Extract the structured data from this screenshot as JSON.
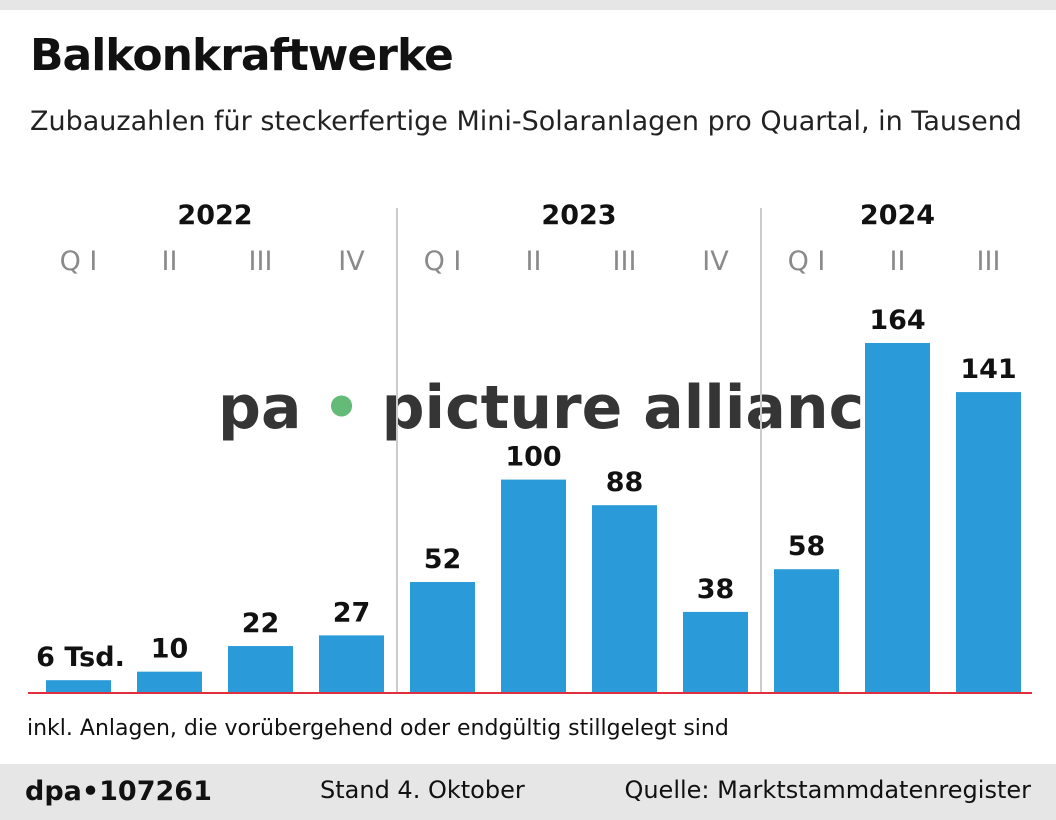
{
  "title": "Balkonkraftwerke",
  "subtitle": "Zubauzahlen für steckerfertige Mini-Solaranlagen pro Quartal, in Tausend",
  "note": "inkl. Anlagen, die vorübergehend oder endgültig stillgelegt sind",
  "footer": {
    "logo": "dpa•107261",
    "stand": "Stand 4. Oktober",
    "source": "Quelle: Marktstammdatenregister"
  },
  "watermark": "pa • picture alliance",
  "chart_data": {
    "type": "bar",
    "years": [
      {
        "label": "2022",
        "count": 4
      },
      {
        "label": "2023",
        "count": 4
      },
      {
        "label": "2024",
        "count": 3
      }
    ],
    "categories": [
      "Q I",
      "II",
      "III",
      "IV",
      "Q I",
      "II",
      "III",
      "IV",
      "Q I",
      "II",
      "III"
    ],
    "values": [
      6,
      10,
      22,
      27,
      52,
      100,
      88,
      38,
      58,
      164,
      141
    ],
    "value_labels": [
      "6 Tsd.",
      "10",
      "22",
      "27",
      "52",
      "100",
      "88",
      "38",
      "58",
      "164",
      "141"
    ],
    "ylim": [
      0,
      164
    ],
    "colors": {
      "bar": "#2a9ad8",
      "baseline": "#e03040",
      "separator": "#cccccc",
      "quarter_label": "#8a8a8a"
    }
  }
}
